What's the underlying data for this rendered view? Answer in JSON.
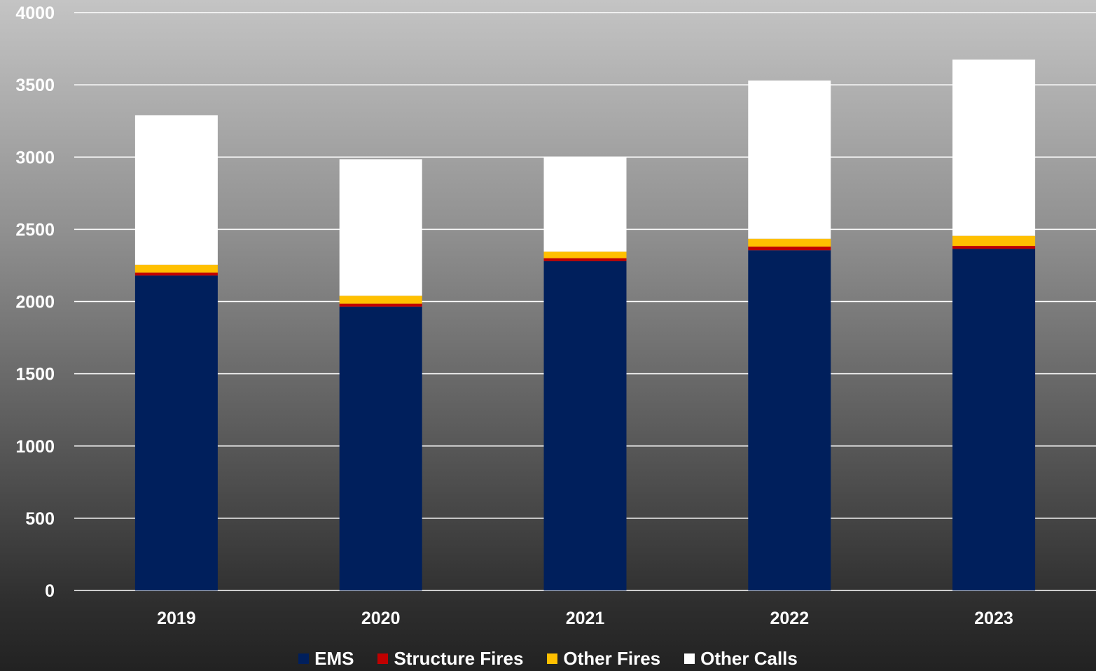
{
  "chart_data": {
    "type": "bar",
    "stacked": true,
    "categories": [
      "2019",
      "2020",
      "2021",
      "2022",
      "2023"
    ],
    "series": [
      {
        "name": "EMS",
        "color": "#001f5c",
        "values": [
          2180,
          1965,
          2280,
          2355,
          2365
        ]
      },
      {
        "name": "Structure Fires",
        "color": "#c00000",
        "values": [
          20,
          20,
          20,
          25,
          20
        ]
      },
      {
        "name": "Other Fires",
        "color": "#ffc000",
        "values": [
          55,
          55,
          45,
          55,
          70
        ]
      },
      {
        "name": "Other Calls",
        "color": "#ffffff",
        "values": [
          1035,
          945,
          655,
          1095,
          1220
        ]
      }
    ],
    "ylim": [
      0,
      4000
    ],
    "yticks": [
      "0",
      "500",
      "1000",
      "1500",
      "2000",
      "2500",
      "3000",
      "3500",
      "4000"
    ],
    "grid": true,
    "legend_position": "bottom",
    "title": "",
    "xlabel": "",
    "ylabel": ""
  }
}
